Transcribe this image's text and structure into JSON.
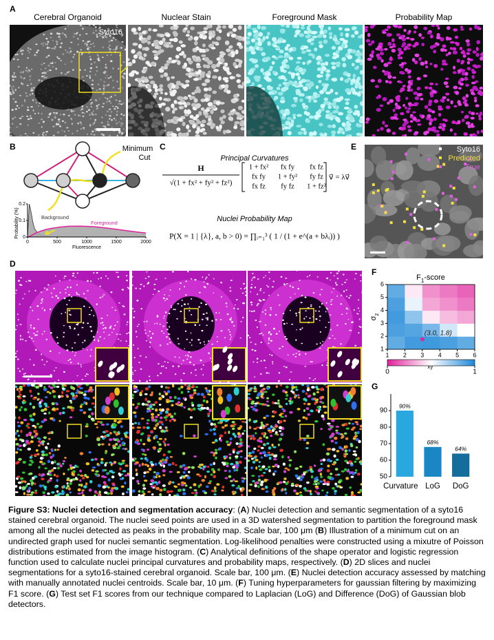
{
  "panel_labels": [
    "A",
    "B",
    "C",
    "D",
    "E",
    "F",
    "G"
  ],
  "panel_a": {
    "titles": [
      "Cerebral Organoid",
      "Nuclear Stain",
      "Foreground Mask",
      "Probability Map"
    ],
    "stain_label": "Syto16"
  },
  "panel_b": {
    "cut_label": [
      "Minimum",
      "Cut"
    ]
  },
  "panel_c": {
    "heading_1": "Principal Curvatures",
    "eq1_numerator": "H",
    "eq1_denominator": "√(1 + fx² + fy² + fz²)",
    "eq1_matrix": [
      [
        "1 + fx²",
        "fx fy",
        "fx fz"
      ],
      [
        "fx fy",
        "1 + fy²",
        "fy fz"
      ],
      [
        "fx fz",
        "fy fz",
        "1 + fz²"
      ]
    ],
    "eq1_rhs": "v⃗ = λv⃗",
    "heading_2": "Nuclei Probability Map",
    "eq2": "P(X = 1 | {λ}, a, b > 0) = ∏ᵢ₌₁³ ( 1 / (1 + e^(a + bλᵢ)) )"
  },
  "panel_e": {
    "legend": [
      {
        "name": "Syto16",
        "color": "#ffffff"
      },
      {
        "name": "Predicted",
        "color": "#f0e040"
      },
      {
        "name": "True",
        "color": "#e060e0"
      }
    ]
  },
  "chart_data": [
    {
      "type": "area",
      "x_label": "Fluorescence",
      "y_label": "Probability (%)",
      "x": [
        0,
        30,
        60,
        90,
        120,
        160,
        220,
        300,
        400,
        550,
        700,
        900,
        1100,
        1300,
        1500,
        1700,
        1850,
        2000
      ],
      "series": [
        {
          "name": "Background",
          "color": "#333333",
          "values": [
            0,
            0.2,
            0.15,
            0.09,
            0.05,
            0.03,
            0.015,
            0.006,
            0.002,
            0,
            0,
            0,
            0,
            0,
            0,
            0,
            0,
            0
          ]
        },
        {
          "name": "Foreground",
          "color": "#e0229a",
          "values": [
            0,
            0.003,
            0.008,
            0.014,
            0.02,
            0.027,
            0.035,
            0.044,
            0.052,
            0.06,
            0.065,
            0.066,
            0.063,
            0.056,
            0.047,
            0.037,
            0.03,
            0.024
          ]
        }
      ],
      "fill": "#aaaaaa",
      "xlim": [
        0,
        2000
      ],
      "ylim": [
        0,
        0.2
      ],
      "xticks": [
        0,
        500,
        1000,
        1500,
        2000
      ],
      "yticks": [
        0,
        0.1,
        0.2
      ]
    },
    {
      "type": "heatmap",
      "title": {
        "text": "F",
        "subscript": "1",
        "suffix": "-score"
      },
      "x_label": {
        "symbol": "σ",
        "subscript": "xy"
      },
      "y_label": {
        "symbol": "σ",
        "subscript": "z"
      },
      "x": [
        1.5,
        2.5,
        3.5,
        4.5,
        5.5
      ],
      "y": [
        1.5,
        2.5,
        3.5,
        4.5,
        5.5
      ],
      "z": [
        [
          0.85,
          0.92,
          0.93,
          0.9,
          0.85
        ],
        [
          0.9,
          0.88,
          0.8,
          0.6,
          0.5
        ],
        [
          0.92,
          0.75,
          0.45,
          0.35,
          0.3
        ],
        [
          0.9,
          0.55,
          0.3,
          0.25,
          0.2
        ],
        [
          0.85,
          0.45,
          0.25,
          0.2,
          0.15
        ]
      ],
      "xlim": [
        1,
        6
      ],
      "ylim": [
        1,
        6
      ],
      "xticks": [
        1,
        2,
        3,
        4,
        5,
        6
      ],
      "yticks": [
        1,
        2,
        3,
        4,
        5,
        6
      ],
      "colormap": [
        "#e0229a",
        "#ffffff",
        "#1f88d8"
      ],
      "zlim": [
        0,
        1
      ],
      "colorbar_ticks": [
        0,
        1
      ],
      "annotation": {
        "text": "(3.0, 1.8)",
        "x": 3.0,
        "y": 1.8,
        "color": "#e0229a"
      }
    },
    {
      "type": "bar",
      "categories": [
        "Curvature",
        "LoG",
        "DoG"
      ],
      "values": [
        90,
        68,
        64
      ],
      "value_labels": [
        "90%",
        "68%",
        "64%"
      ],
      "colors": [
        "#29a8e0",
        "#1b86c4",
        "#156d9b"
      ],
      "ylim": [
        50,
        100
      ],
      "yticks": [
        50,
        60,
        70,
        80,
        90
      ]
    }
  ],
  "caption": {
    "title": "Figure S3: Nuclei detection and segmentation accuracy",
    "parts": [
      ": (",
      "A",
      ") Nuclei detection and semantic segmentation of a syto16 stained cerebral organoid. The nuclei seed points are used in a 3D watershed segmentation to partition the foreground mask among all the nuclei detected as peaks in the probability map. Scale bar, 100 μm (",
      "B",
      ") Illustration of a minimum  cut on an undirected graph used for nuclei semantic segmentation. Log-likelihood penalties were constructed using a mixutre  of Poisson distributions estimated from the image histogram. (",
      "C",
      ") Analytical definitions of the shape operator and logistic regression function used to calculate nuclei principal curvatures and probability maps, respectively. (",
      "D",
      ") 2D slices and nuclei segmentations for a syto16-stained cerebral organoid. Scale bar, 100 μm. (",
      "E",
      ") Nuclei detection accuracy assessed by matching with manually annotated nuclei centroids. Scale bar, 10 μm. (",
      "F",
      ") Tuning hyperparameters for gaussian filtering by maximizing F1 score. (",
      "G",
      ") Test set F1 scores from our technique compared to Laplacian (LoG) and Difference (DoG) of Gaussian blob detectors."
    ]
  }
}
